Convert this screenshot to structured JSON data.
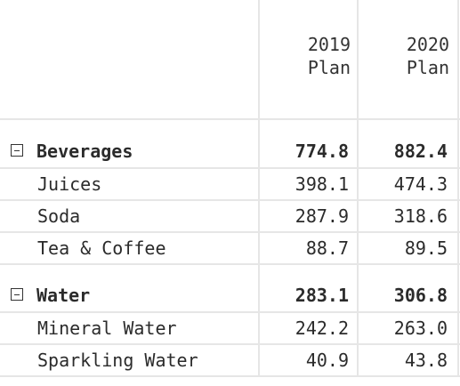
{
  "columns": [
    {
      "line1": "2019",
      "line2": "Plan"
    },
    {
      "line1": "2020",
      "line2": "Plan"
    }
  ],
  "groups": [
    {
      "label": "Beverages",
      "expanded": true,
      "values": [
        "774.8",
        "882.4"
      ],
      "children": [
        {
          "label": "Juices",
          "values": [
            "398.1",
            "474.3"
          ]
        },
        {
          "label": "Soda",
          "values": [
            "287.9",
            "318.6"
          ]
        },
        {
          "label": "Tea & Coffee",
          "values": [
            "88.7",
            "89.5"
          ]
        }
      ]
    },
    {
      "label": "Water",
      "expanded": true,
      "values": [
        "283.1",
        "306.8"
      ],
      "children": [
        {
          "label": "Mineral Water",
          "values": [
            "242.2",
            "263.0"
          ]
        },
        {
          "label": "Sparkling Water",
          "values": [
            "40.9",
            "43.8"
          ]
        }
      ]
    }
  ]
}
